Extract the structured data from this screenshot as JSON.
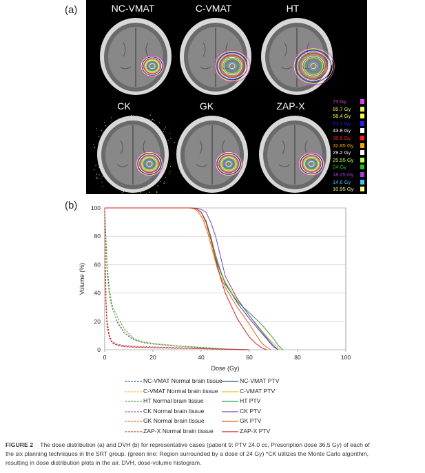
{
  "panel_a": {
    "label": "(a)",
    "titles": [
      "NC-VMAT",
      "C-VMAT",
      "HT",
      "CK",
      "GK",
      "ZAP-X"
    ],
    "dose_legend": [
      {
        "label": "73 Gy",
        "color": "#e040e0"
      },
      {
        "label": "65.7 Gy",
        "color": "#f0f060"
      },
      {
        "label": "58.4 Gy",
        "color": "#ffff40"
      },
      {
        "label": "51.1 Gy",
        "color": "#2020ff"
      },
      {
        "label": "43.8 Gy",
        "color": "#ffffff"
      },
      {
        "label": "36.5 Gy",
        "color": "#ff2020"
      },
      {
        "label": "32.85 Gy",
        "color": "#ffa500"
      },
      {
        "label": "29.2 Gy",
        "color": "#ffffff"
      },
      {
        "label": "25.55 Gy",
        "color": "#c0ff40"
      },
      {
        "label": "24 Gy",
        "color": "#20c020"
      },
      {
        "label": "18.25 Gy",
        "color": "#a040e0"
      },
      {
        "label": "14.6 Gy",
        "color": "#40c0ff"
      },
      {
        "label": "10.95 Gy",
        "color": "#ffff80"
      }
    ]
  },
  "panel_b": {
    "label": "(b)"
  },
  "chart_data": {
    "type": "line",
    "xlabel": "Dose (Gy)",
    "ylabel": "Volume (%)",
    "xlim": [
      0,
      100
    ],
    "ylim": [
      0,
      100
    ],
    "xticks": [
      0,
      20,
      40,
      60,
      80,
      100
    ],
    "yticks": [
      0,
      20,
      40,
      60,
      80,
      100
    ],
    "grid": "horizontal",
    "legend_position": "bottom",
    "series": [
      {
        "name": "NC-VMAT Normal brain tissue",
        "color": "#1f4e9c",
        "style": "dashed",
        "x": [
          0,
          0.5,
          1,
          2,
          3,
          5,
          8,
          12,
          16,
          20,
          30,
          40,
          50,
          60
        ],
        "y": [
          100,
          75,
          55,
          38,
          30,
          20,
          12,
          7,
          5,
          4,
          2.5,
          1.5,
          0.5,
          0
        ]
      },
      {
        "name": "NC-VMAT PTV",
        "color": "#1f4e9c",
        "style": "solid",
        "x": [
          0,
          36,
          38,
          40,
          42,
          44,
          46,
          48,
          50,
          55,
          60,
          65,
          68,
          70,
          72
        ],
        "y": [
          100,
          100,
          99.5,
          97,
          90,
          78,
          65,
          55,
          47,
          33,
          22,
          12,
          6,
          2,
          0
        ]
      },
      {
        "name": "C-VMAT Normal brain tissue",
        "color": "#e0c020",
        "style": "dashed",
        "x": [
          0,
          0.5,
          1,
          2,
          3,
          5,
          8,
          12,
          16,
          20,
          30,
          40,
          50,
          60
        ],
        "y": [
          100,
          72,
          52,
          37,
          29,
          21,
          13,
          7.5,
          5,
          4,
          2.5,
          1.5,
          0.5,
          0
        ]
      },
      {
        "name": "C-VMAT PTV",
        "color": "#e0c020",
        "style": "solid",
        "x": [
          0,
          36,
          38,
          40,
          42,
          44,
          46,
          48,
          50,
          55,
          60,
          65,
          68,
          71,
          73
        ],
        "y": [
          100,
          100,
          99.5,
          97,
          90,
          79,
          66,
          56,
          48,
          35,
          24,
          14,
          8,
          3,
          0
        ]
      },
      {
        "name": "HT Normal brain tissue",
        "color": "#2aa050",
        "style": "dashed",
        "x": [
          0,
          0.5,
          1,
          2,
          3,
          5,
          8,
          12,
          16,
          20,
          30,
          40,
          50,
          60
        ],
        "y": [
          100,
          80,
          60,
          42,
          32,
          24,
          15,
          8,
          5.5,
          4.5,
          2.8,
          1.7,
          0.6,
          0
        ]
      },
      {
        "name": "HT PTV",
        "color": "#2aa050",
        "style": "solid",
        "x": [
          0,
          36,
          38,
          40,
          42,
          44,
          46,
          48,
          50,
          55,
          60,
          65,
          70,
          72,
          74
        ],
        "y": [
          100,
          100,
          99.5,
          97,
          91,
          80,
          67,
          56,
          46,
          34,
          26,
          18,
          8,
          3,
          0
        ]
      },
      {
        "name": "CK Normal brain tissue",
        "color": "#8040c0",
        "style": "dashed",
        "x": [
          0,
          0.3,
          0.6,
          1,
          2,
          3,
          5,
          8,
          12,
          20,
          30,
          40,
          50,
          60
        ],
        "y": [
          100,
          60,
          35,
          20,
          10,
          6,
          4,
          3,
          2.5,
          2,
          1.5,
          1,
          0.5,
          0
        ]
      },
      {
        "name": "CK PTV",
        "color": "#8040c0",
        "style": "solid",
        "x": [
          0,
          36,
          38,
          40,
          42,
          44,
          46,
          48,
          50,
          55,
          60,
          65,
          68,
          70,
          72
        ],
        "y": [
          100,
          100,
          99.8,
          99,
          97,
          90,
          80,
          66,
          52,
          36,
          24,
          13,
          7,
          3,
          0
        ]
      },
      {
        "name": "GK Normal brain tissue",
        "color": "#e06010",
        "style": "dashed",
        "x": [
          0,
          0.3,
          0.6,
          1,
          2,
          3,
          5,
          8,
          12,
          20,
          30,
          40,
          50,
          60
        ],
        "y": [
          100,
          55,
          30,
          18,
          9,
          5.5,
          3.5,
          2.5,
          2,
          1.5,
          1.2,
          0.8,
          0.4,
          0
        ]
      },
      {
        "name": "GK PTV",
        "color": "#e06010",
        "style": "solid",
        "x": [
          0,
          35,
          37,
          39,
          41,
          43,
          45,
          47,
          50,
          55,
          60,
          63,
          65,
          67,
          69
        ],
        "y": [
          100,
          100,
          99.5,
          97,
          91,
          81,
          68,
          56,
          44,
          30,
          18,
          10,
          5,
          2,
          0
        ]
      },
      {
        "name": "ZAP-X Normal brain tissue",
        "color": "#d02020",
        "style": "dashed",
        "x": [
          0,
          0.3,
          0.6,
          1,
          2,
          3,
          5,
          8,
          12,
          20,
          30,
          40,
          50,
          60
        ],
        "y": [
          100,
          50,
          28,
          16,
          8,
          5,
          3,
          2.2,
          1.8,
          1.4,
          1,
          0.7,
          0.3,
          0
        ]
      },
      {
        "name": "ZAP-X PTV",
        "color": "#d02020",
        "style": "solid",
        "x": [
          0,
          36,
          38,
          40,
          42,
          44,
          46,
          48,
          50,
          55,
          58,
          60,
          63,
          65,
          67
        ],
        "y": [
          100,
          100,
          99.5,
          97,
          90,
          78,
          64,
          51,
          40,
          22,
          14,
          9,
          4,
          1.5,
          0
        ]
      }
    ]
  },
  "caption": {
    "fig_label": "FIGURE 2",
    "line1": "The dose distribution (a) and DVH (b) for representative cases (patient 9: PTV 24.0 cc, Prescription dose 36.5 Gy) of each of",
    "line2": "the six planning techniques in the SRT group. (green line: Region surrounded by a dose of 24 Gy) *CK utilizes the Monte Carlo algorithm,",
    "line3": "resulting in dose distribution plots in the air. DVH, dose-volume histogram."
  }
}
